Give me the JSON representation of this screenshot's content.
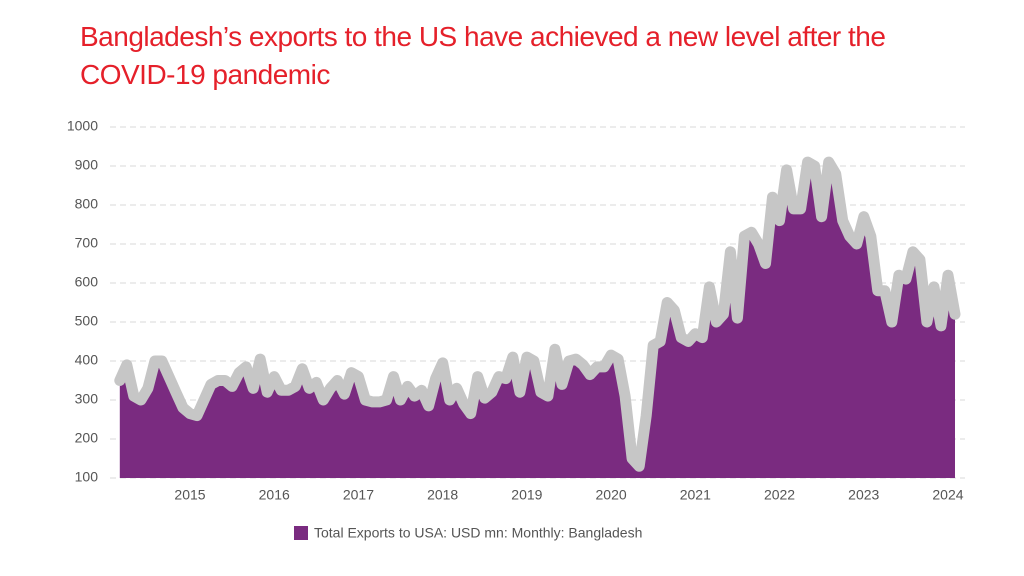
{
  "chart_data": {
    "type": "area",
    "title": "Bangladesh’s exports to the US have achieved a new level after the COVID-19 pandemic",
    "categories": [
      null,
      null,
      null,
      null,
      null,
      null,
      null,
      null,
      null,
      null,
      "2015",
      null,
      null,
      null,
      null,
      null,
      null,
      null,
      null,
      null,
      null,
      null,
      "2016",
      null,
      null,
      null,
      null,
      null,
      null,
      null,
      null,
      null,
      null,
      null,
      "2017",
      null,
      null,
      null,
      null,
      null,
      null,
      null,
      null,
      null,
      null,
      null,
      "2018",
      null,
      null,
      null,
      null,
      null,
      null,
      null,
      null,
      null,
      null,
      null,
      "2019",
      null,
      null,
      null,
      null,
      null,
      null,
      null,
      null,
      null,
      null,
      null,
      "2020",
      null,
      null,
      null,
      null,
      null,
      null,
      null,
      null,
      null,
      null,
      null,
      "2021",
      null,
      null,
      null,
      null,
      null,
      null,
      null,
      null,
      null,
      null,
      null,
      "2022",
      null,
      null,
      null,
      null,
      null,
      null,
      null,
      null,
      null,
      null,
      null,
      "2023",
      null,
      null,
      null,
      null,
      null,
      null,
      null,
      null,
      null,
      null,
      null,
      "2024",
      null
    ],
    "series": [
      {
        "name": "Total Exports to USA: USD mn: Monthly: Bangladesh",
        "color": "#7a2b80",
        "line_color": "#c6c6c6",
        "values": [
          350,
          390,
          310,
          300,
          330,
          400,
          400,
          360,
          320,
          280,
          265,
          260,
          300,
          340,
          350,
          350,
          335,
          370,
          385,
          330,
          405,
          320,
          360,
          325,
          325,
          335,
          380,
          330,
          345,
          300,
          330,
          350,
          315,
          370,
          360,
          300,
          295,
          295,
          300,
          360,
          300,
          335,
          310,
          325,
          285,
          355,
          395,
          300,
          330,
          290,
          265,
          360,
          305,
          320,
          360,
          355,
          410,
          320,
          410,
          400,
          320,
          310,
          430,
          340,
          400,
          405,
          390,
          365,
          385,
          385,
          415,
          405,
          310,
          150,
          130,
          260,
          440,
          450,
          550,
          530,
          460,
          450,
          470,
          460,
          590,
          500,
          520,
          680,
          510,
          720,
          730,
          700,
          650,
          820,
          760,
          890,
          790,
          790,
          910,
          900,
          770,
          910,
          880,
          760,
          720,
          700,
          770,
          720,
          580,
          580,
          500,
          620,
          610,
          680,
          660,
          500,
          590,
          490,
          620,
          520
        ]
      }
    ],
    "ylim": [
      100,
      1000
    ],
    "yticks": [
      100,
      200,
      300,
      400,
      500,
      600,
      700,
      800,
      900,
      1000
    ],
    "grid": true
  }
}
